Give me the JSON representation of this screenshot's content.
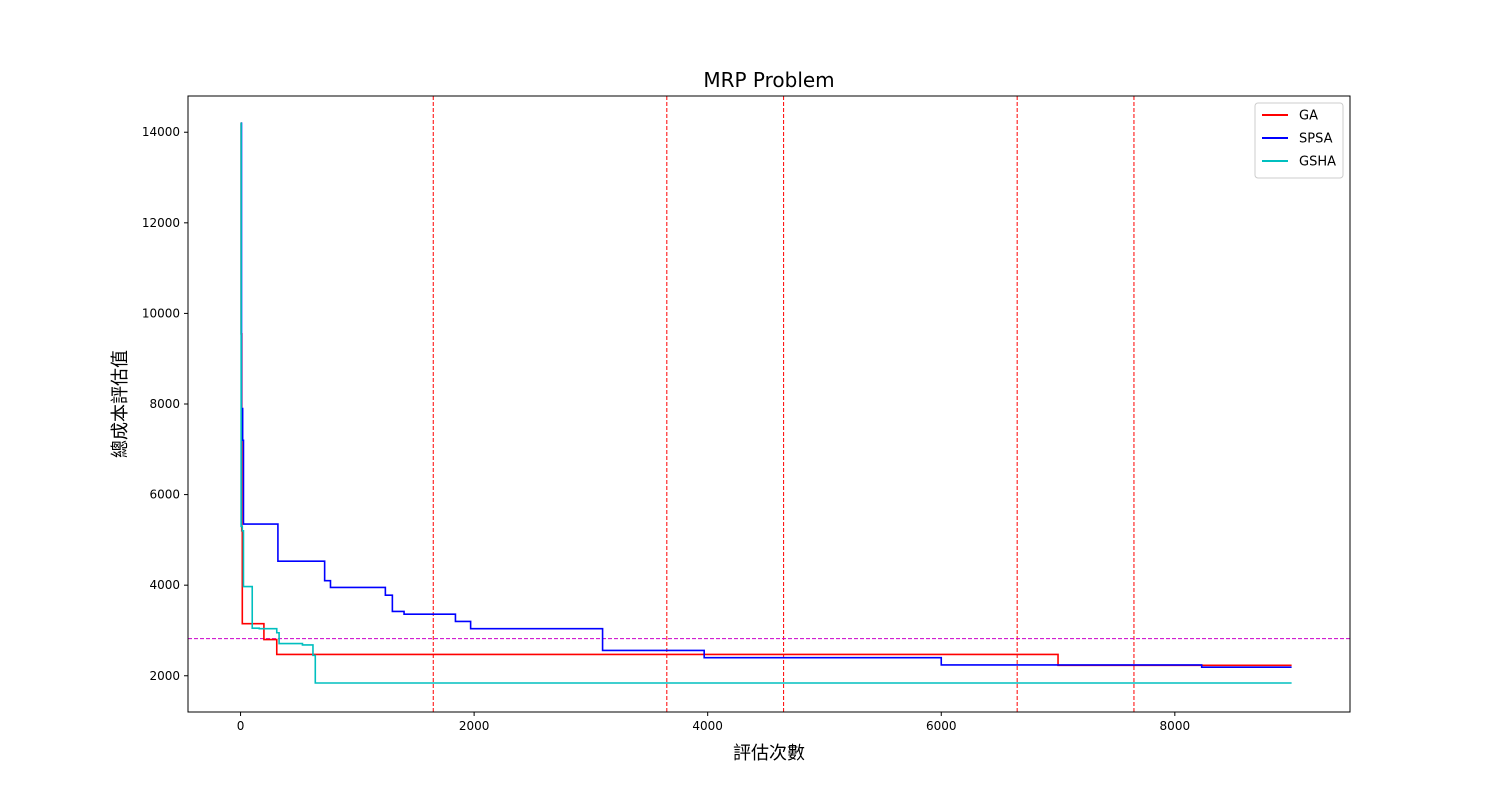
{
  "chart_data": {
    "type": "line",
    "title": "MRP Problem",
    "xlabel": "評估次數",
    "ylabel": "總成本評估值",
    "xlim": [
      -450,
      9500
    ],
    "ylim": [
      1200,
      14800
    ],
    "xticks": [
      0,
      2000,
      4000,
      6000,
      8000
    ],
    "yticks": [
      2000,
      4000,
      6000,
      8000,
      10000,
      12000,
      14000
    ],
    "grid": false,
    "legend_position": "top-right",
    "reference_lines": {
      "vertical_x": [
        1650,
        3650,
        4650,
        6650,
        7650
      ],
      "vertical_color": "#ff0000",
      "horizontal_y": 2820,
      "horizontal_color": "#cc00cc"
    },
    "series": [
      {
        "name": "GA",
        "color": "#ff0000",
        "step": true,
        "points": [
          [
            0,
            14200
          ],
          [
            5,
            14200
          ],
          [
            5,
            9550
          ],
          [
            10,
            9550
          ],
          [
            10,
            5200
          ],
          [
            15,
            5200
          ],
          [
            15,
            3150
          ],
          [
            200,
            3150
          ],
          [
            200,
            2800
          ],
          [
            310,
            2800
          ],
          [
            310,
            2470
          ],
          [
            7000,
            2470
          ],
          [
            7000,
            2230
          ],
          [
            9000,
            2230
          ]
        ]
      },
      {
        "name": "SPSA",
        "color": "#0000ff",
        "step": true,
        "points": [
          [
            0,
            14200
          ],
          [
            8,
            14200
          ],
          [
            8,
            7900
          ],
          [
            18,
            7900
          ],
          [
            18,
            7200
          ],
          [
            25,
            7200
          ],
          [
            25,
            5350
          ],
          [
            320,
            5350
          ],
          [
            320,
            4530
          ],
          [
            720,
            4530
          ],
          [
            720,
            4100
          ],
          [
            770,
            4100
          ],
          [
            770,
            3950
          ],
          [
            1240,
            3950
          ],
          [
            1240,
            3780
          ],
          [
            1300,
            3780
          ],
          [
            1300,
            3420
          ],
          [
            1400,
            3420
          ],
          [
            1400,
            3360
          ],
          [
            1840,
            3360
          ],
          [
            1840,
            3200
          ],
          [
            1970,
            3200
          ],
          [
            1970,
            3040
          ],
          [
            3100,
            3040
          ],
          [
            3100,
            2560
          ],
          [
            3970,
            2560
          ],
          [
            3970,
            2400
          ],
          [
            6000,
            2400
          ],
          [
            6000,
            2240
          ],
          [
            8230,
            2240
          ],
          [
            8230,
            2190
          ],
          [
            9000,
            2190
          ]
        ]
      },
      {
        "name": "GSHA",
        "color": "#00bfbf",
        "step": true,
        "points": [
          [
            0,
            14200
          ],
          [
            5,
            14200
          ],
          [
            5,
            5300
          ],
          [
            15,
            5300
          ],
          [
            15,
            5200
          ],
          [
            25,
            5200
          ],
          [
            25,
            3970
          ],
          [
            100,
            3970
          ],
          [
            100,
            3050
          ],
          [
            160,
            3050
          ],
          [
            160,
            3040
          ],
          [
            310,
            3040
          ],
          [
            310,
            2950
          ],
          [
            330,
            2950
          ],
          [
            330,
            2710
          ],
          [
            530,
            2710
          ],
          [
            530,
            2680
          ],
          [
            620,
            2680
          ],
          [
            620,
            2450
          ],
          [
            640,
            2450
          ],
          [
            640,
            1840
          ],
          [
            9000,
            1840
          ]
        ]
      }
    ]
  }
}
